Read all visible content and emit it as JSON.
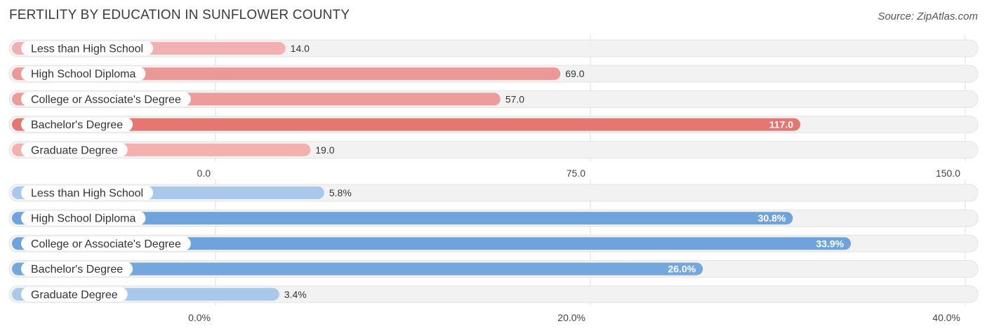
{
  "header": {
    "title": "FERTILITY BY EDUCATION IN SUNFLOWER COUNTY",
    "source": "Source: ZipAtlas.com"
  },
  "chart_data": [
    {
      "type": "bar",
      "orientation": "horizontal",
      "categories": [
        "Less than High School",
        "High School Diploma",
        "College or Associate's Degree",
        "Bachelor's Degree",
        "Graduate Degree"
      ],
      "values": [
        14.0,
        69.0,
        57.0,
        117.0,
        19.0
      ],
      "value_labels": [
        "14.0",
        "69.0",
        "57.0",
        "117.0",
        "19.0"
      ],
      "xlim": [
        0,
        150
      ],
      "ticks": [
        0,
        75,
        150
      ],
      "tick_labels": [
        "0.0",
        "75.0",
        "150.0"
      ],
      "colors": [
        "#f2b1b0",
        "#ec9896",
        "#ec9d9b",
        "#e57773",
        "#f2b0ae"
      ],
      "grid": true
    },
    {
      "type": "bar",
      "orientation": "horizontal",
      "categories": [
        "Less than High School",
        "High School Diploma",
        "College or Associate's Degree",
        "Bachelor's Degree",
        "Graduate Degree"
      ],
      "values": [
        5.8,
        30.8,
        33.9,
        26.0,
        3.4
      ],
      "value_labels": [
        "5.8%",
        "30.8%",
        "33.9%",
        "26.0%",
        "3.4%"
      ],
      "xlim": [
        0,
        40
      ],
      "ticks": [
        0,
        20,
        40
      ],
      "tick_labels": [
        "0.0%",
        "20.0%",
        "40.0%"
      ],
      "colors": [
        "#a8c8ec",
        "#6fa3dc",
        "#6fa3dc",
        "#74a7de",
        "#a8c8ec"
      ],
      "grid": true
    }
  ]
}
